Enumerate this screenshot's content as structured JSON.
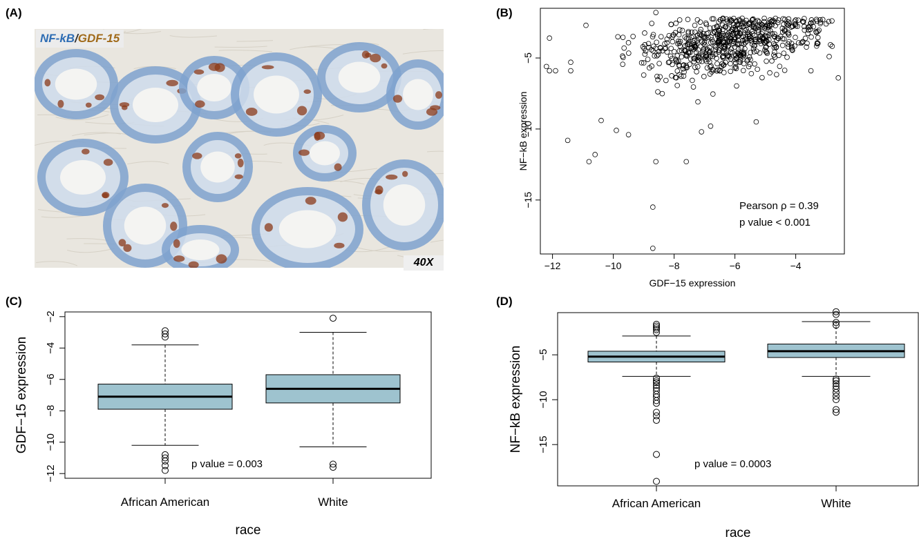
{
  "panel_labels": {
    "a": "(A)",
    "b": "(B)",
    "c": "(C)",
    "d": "(D)"
  },
  "micrograph": {
    "stain_nf": "NF-kB",
    "stain_sep": "/",
    "stain_gdf": "GDF-15",
    "magnification": "40X",
    "colors": {
      "nf": "#2e6db4",
      "gdf": "#a06a1a",
      "bg": "#e9e6df",
      "blue_stain": "#7fa3cf",
      "brown_stain": "#8b3a1a"
    }
  },
  "chart_data": [
    {
      "panel": "(B)",
      "type": "scatter",
      "xlabel": "GDF−15 expression",
      "ylabel": "NF−kB expression",
      "xlim": [
        -12.4,
        -2.4
      ],
      "ylim": [
        -18.8,
        -1.5
      ],
      "xticks": [
        -12,
        -10,
        -8,
        -6,
        -4
      ],
      "yticks": [
        -5,
        -10,
        -15
      ],
      "annotations": [
        "Pearson ρ = 0.39",
        "p value < 0.001"
      ],
      "outliers": [
        [
          -12.1,
          -3.6
        ],
        [
          -12.2,
          -5.6
        ],
        [
          -12.1,
          -5.9
        ],
        [
          -11.9,
          -5.9
        ],
        [
          -11.4,
          -5.3
        ],
        [
          -11.4,
          -5.9
        ],
        [
          -11.5,
          -10.8
        ],
        [
          -10.9,
          -2.7
        ],
        [
          -10.8,
          -12.3
        ],
        [
          -10.6,
          -11.8
        ],
        [
          -10.4,
          -9.4
        ],
        [
          -9.9,
          -10.1
        ],
        [
          -9.5,
          -10.4
        ],
        [
          -8.7,
          -15.5
        ],
        [
          -8.7,
          -18.4
        ],
        [
          -8.6,
          -12.3
        ],
        [
          -7.6,
          -12.3
        ],
        [
          -8.6,
          -1.8
        ],
        [
          -7.1,
          -10.2
        ],
        [
          -6.8,
          -9.8
        ],
        [
          -5.3,
          -9.5
        ],
        [
          -2.6,
          -6.4
        ],
        [
          -3.0,
          -2.6
        ],
        [
          -3.3,
          -2.4
        ],
        [
          -3.3,
          -4.0
        ],
        [
          -3.5,
          -5.9
        ],
        [
          -2.9,
          -4.9
        ]
      ],
      "cluster": {
        "n": 640,
        "x_mean": -6.3,
        "x_sd": 1.55,
        "y_mean": -3.9,
        "y_sd": 1.55,
        "trend": 0.35
      },
      "colors": {
        "point": "#000000"
      }
    },
    {
      "panel": "(C)",
      "type": "box",
      "categories": [
        "African American",
        "White"
      ],
      "xlabel": "race",
      "ylabel": "GDF−15 expression",
      "ylim": [
        -12.3,
        -1.7
      ],
      "yticks": [
        -2,
        -4,
        -6,
        -8,
        -10,
        -12
      ],
      "boxes": [
        {
          "category": "African American",
          "lower_whisker": -10.2,
          "q1": -7.9,
          "median": -7.1,
          "q3": -6.3,
          "upper_whisker": -3.8,
          "outliers": [
            -2.9,
            -3.1,
            -3.3,
            -10.8,
            -11.0,
            -11.2,
            -11.5,
            -11.8
          ]
        },
        {
          "category": "White",
          "lower_whisker": -10.3,
          "q1": -7.5,
          "median": -6.6,
          "q3": -5.7,
          "upper_whisker": -3.0,
          "outliers": [
            -2.1,
            -11.4,
            -11.6
          ]
        }
      ],
      "annotation": "p value = 0.003",
      "colors": {
        "box": "#9ec3cf"
      }
    },
    {
      "panel": "(D)",
      "type": "box",
      "categories": [
        "African American",
        "White"
      ],
      "xlabel": "race",
      "ylabel": "NF−kB expression",
      "ylim": [
        -19.6,
        -0.3
      ],
      "yticks": [
        -5,
        -10,
        -15
      ],
      "boxes": [
        {
          "category": "African American",
          "lower_whisker": -7.4,
          "q1": -5.8,
          "median": -5.2,
          "q3": -4.6,
          "upper_whisker": -2.9,
          "outliers": [
            -1.6,
            -1.8,
            -2.0,
            -2.2,
            -2.5,
            -7.6,
            -7.9,
            -8.1,
            -8.4,
            -8.7,
            -9.0,
            -9.4,
            -9.7,
            -10.1,
            -10.4,
            -11.4,
            -11.8,
            -12.3,
            -16.1,
            -19.1
          ]
        },
        {
          "category": "White",
          "lower_whisker": -7.4,
          "q1": -5.3,
          "median": -4.6,
          "q3": -3.8,
          "upper_whisker": -1.3,
          "outliers": [
            -0.2,
            -0.5,
            -1.4,
            -1.7,
            -7.7,
            -7.9,
            -8.2,
            -8.5,
            -8.8,
            -9.2,
            -9.6,
            -10.0,
            -11.1,
            -11.4
          ]
        }
      ],
      "annotation": "p value = 0.0003",
      "colors": {
        "box": "#9ec3cf"
      }
    }
  ]
}
